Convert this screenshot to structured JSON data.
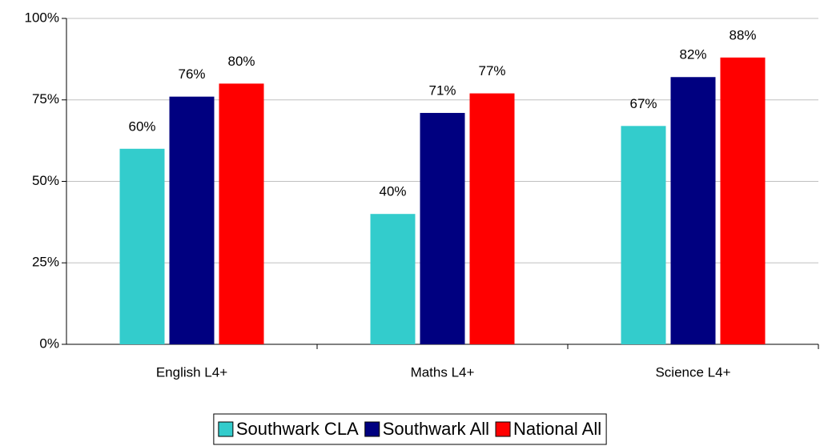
{
  "chart_data": {
    "type": "bar",
    "categories": [
      "English L4+",
      "Maths L4+",
      "Science L4+"
    ],
    "series": [
      {
        "name": "Southwark CLA",
        "color": "#33CCCC",
        "values": [
          60,
          40,
          67
        ],
        "value_labels": [
          "60%",
          "40%",
          "67%"
        ]
      },
      {
        "name": "Southwark All",
        "color": "#000080",
        "values": [
          76,
          71,
          82
        ],
        "value_labels": [
          "76%",
          "71%",
          "82%"
        ]
      },
      {
        "name": "National All",
        "color": "#FF0000",
        "values": [
          80,
          77,
          88
        ],
        "value_labels": [
          "80%",
          "77%",
          "88%"
        ]
      }
    ],
    "ylim": [
      0,
      100
    ],
    "yticks": [
      {
        "value": 0,
        "label": "0%"
      },
      {
        "value": 25,
        "label": "25%"
      },
      {
        "value": 50,
        "label": "50%"
      },
      {
        "value": 75,
        "label": "75%"
      },
      {
        "value": 100,
        "label": "100%"
      }
    ],
    "grid": true,
    "legend": "bottom"
  }
}
